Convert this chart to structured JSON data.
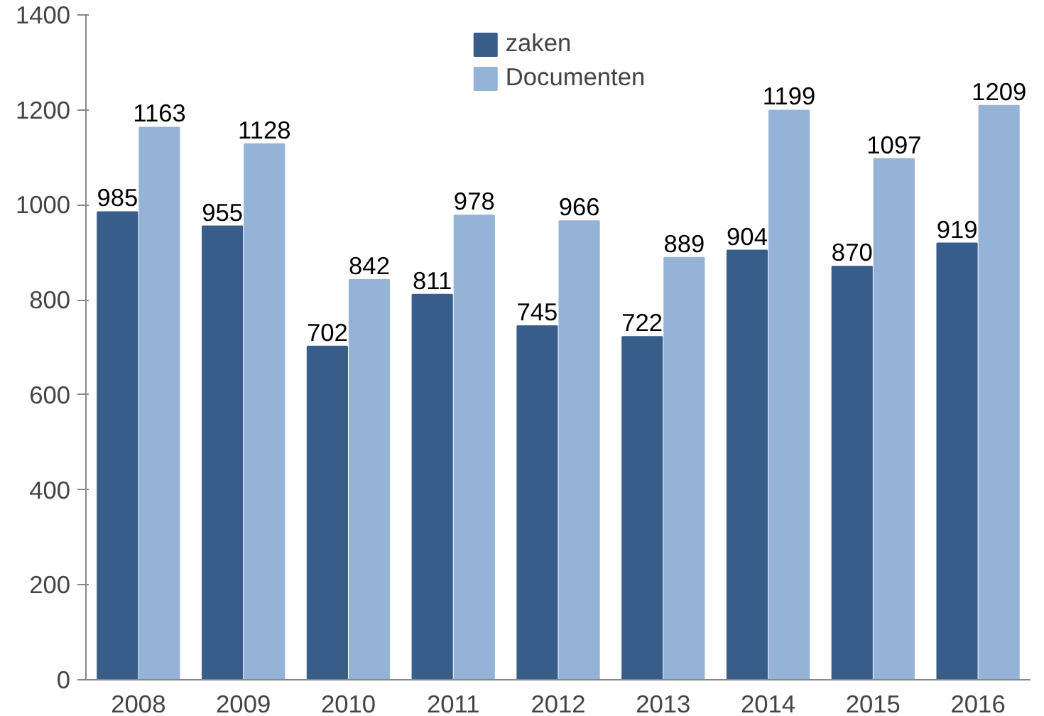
{
  "chart_data": {
    "type": "bar",
    "categories": [
      "2008",
      "2009",
      "2010",
      "2011",
      "2012",
      "2013",
      "2014",
      "2015",
      "2016"
    ],
    "series": [
      {
        "name": "zaken",
        "color": "#385d8a",
        "values": [
          985,
          955,
          702,
          811,
          745,
          722,
          904,
          870,
          919
        ]
      },
      {
        "name": "Documenten",
        "color": "#95b3d7",
        "values": [
          1163,
          1128,
          842,
          978,
          966,
          889,
          1199,
          1097,
          1209
        ]
      }
    ],
    "ylim": [
      0,
      1400
    ],
    "yticks": [
      0,
      200,
      400,
      600,
      800,
      1000,
      1200,
      1400
    ],
    "data_labels": true,
    "legend": "top",
    "grid": false
  }
}
